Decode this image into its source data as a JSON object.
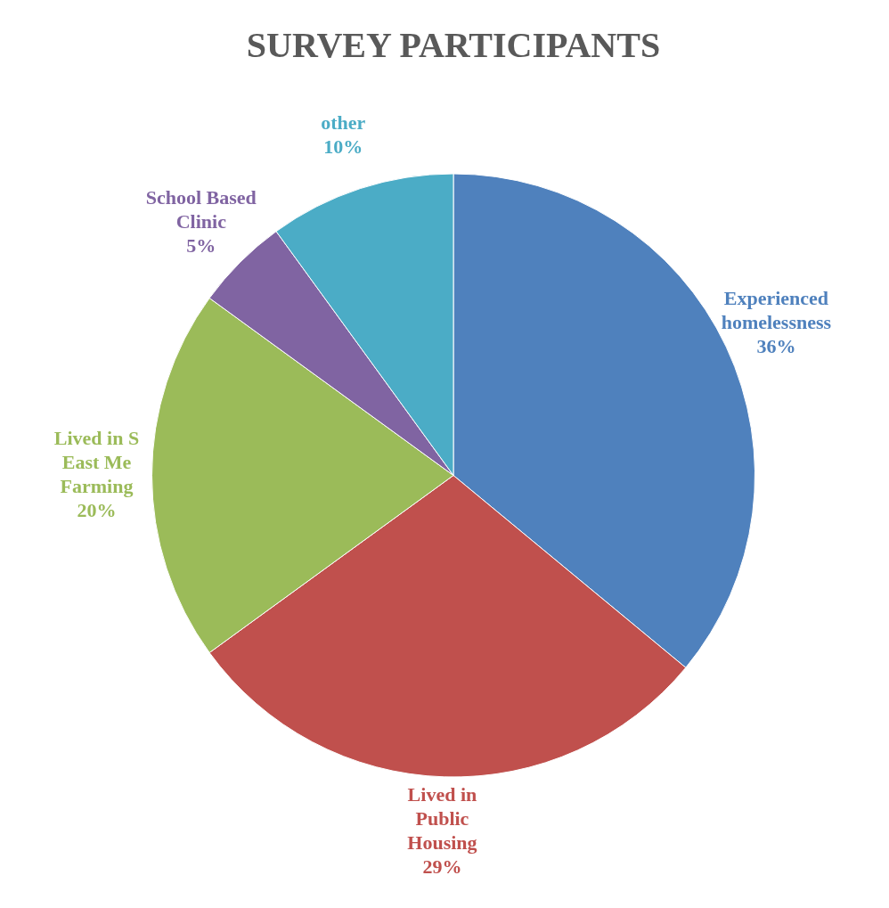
{
  "chart_data": {
    "type": "pie",
    "title": "SURVEY PARTICIPANTS",
    "categories": [
      "Experienced homelessness",
      "Lived in Public Housing",
      "Lived in S East Me Farming",
      "School Based Clinic",
      "other"
    ],
    "values": [
      36,
      29,
      20,
      5,
      10
    ],
    "value_labels": [
      "36%",
      "29%",
      "20%",
      "5%",
      "10%"
    ],
    "colors": [
      "#4f81bd",
      "#c0504d",
      "#9bbb59",
      "#8064a2",
      "#4bacc6"
    ],
    "legend": false
  }
}
